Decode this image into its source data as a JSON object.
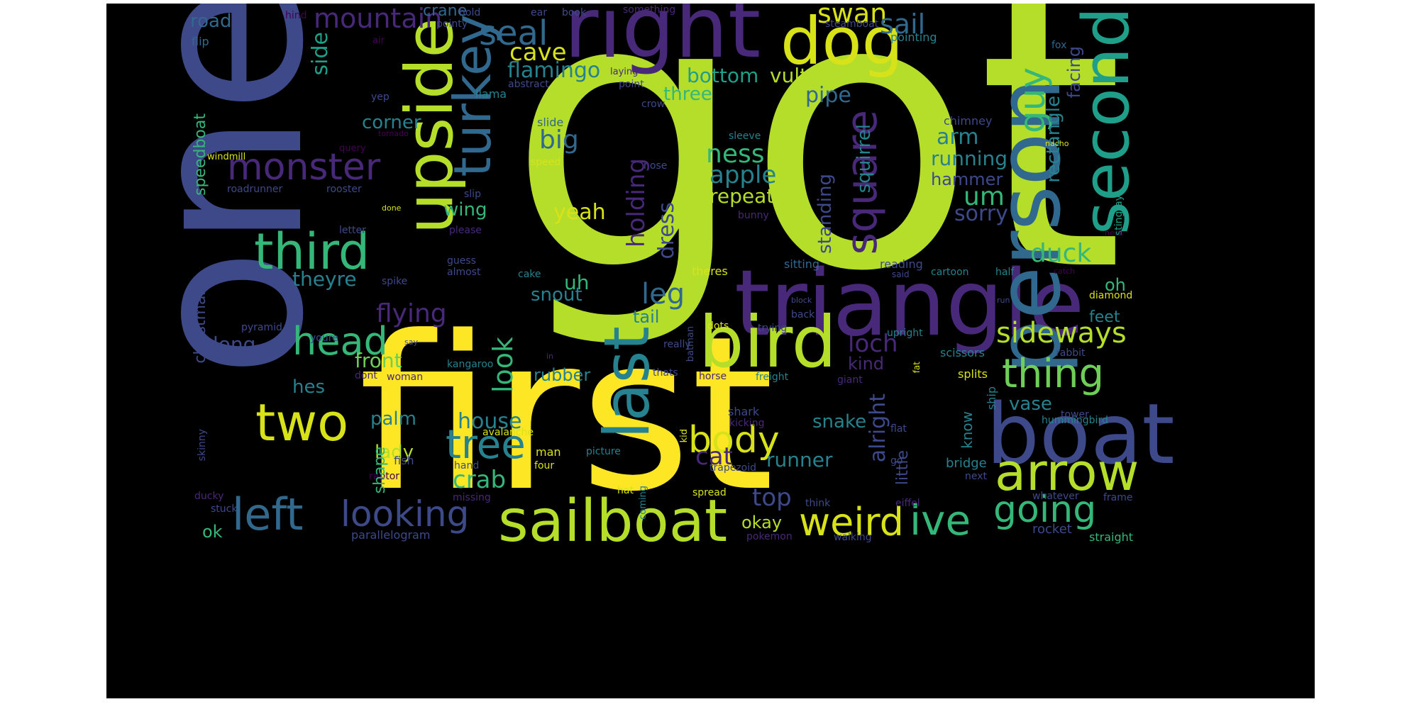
{
  "cloud": {
    "background": "#000000",
    "palette": {
      "yellow": "#fde725",
      "lime": "#b5de2b",
      "green": "#6ece58",
      "teal_green": "#35b779",
      "teal": "#1f9e89",
      "blue_teal": "#26828e",
      "blue": "#31688e",
      "indigo": "#3e4989",
      "purple": "#482878",
      "deep_purple": "#440154"
    },
    "words": [
      {
        "text": "got",
        "color": "#b5de2b"
      },
      {
        "text": "one",
        "color": "#3e4989"
      },
      {
        "text": "first",
        "color": "#fde725"
      },
      {
        "text": "triangle",
        "color": "#482878"
      },
      {
        "text": "right",
        "color": "#482878"
      },
      {
        "text": "person",
        "color": "#31688e"
      },
      {
        "text": "second",
        "color": "#1f9e89"
      },
      {
        "text": "boat",
        "color": "#3e4989"
      },
      {
        "text": "upside",
        "color": "#b5de2b"
      },
      {
        "text": "bird",
        "color": "#b5de2b"
      },
      {
        "text": "dog",
        "color": "#d8e219"
      },
      {
        "text": "last",
        "color": "#26828e"
      },
      {
        "text": "sailboat",
        "color": "#b5de2b"
      },
      {
        "text": "arrow",
        "color": "#b5de2b"
      },
      {
        "text": "two",
        "color": "#d8e219"
      },
      {
        "text": "third",
        "color": "#35b779"
      },
      {
        "text": "turkey",
        "color": "#31688e"
      },
      {
        "text": "square",
        "color": "#482878"
      },
      {
        "text": "thing",
        "color": "#6ece58"
      },
      {
        "text": "head",
        "color": "#35b779"
      },
      {
        "text": "weird",
        "color": "#d8e219"
      },
      {
        "text": "left",
        "color": "#31688e"
      },
      {
        "text": "looking",
        "color": "#3e4989"
      },
      {
        "text": "ive",
        "color": "#35b779"
      },
      {
        "text": "going",
        "color": "#35b779"
      },
      {
        "text": "tree",
        "color": "#26828e"
      },
      {
        "text": "body",
        "color": "#d8e219"
      },
      {
        "text": "monster",
        "color": "#482878"
      },
      {
        "text": "guy",
        "color": "#35b779"
      },
      {
        "text": "seal",
        "color": "#31688e"
      },
      {
        "text": "sideways",
        "color": "#b5de2b"
      },
      {
        "text": "mountain",
        "color": "#482878"
      },
      {
        "text": "swan",
        "color": "#d8e219"
      },
      {
        "text": "sail",
        "color": "#31688e"
      },
      {
        "text": "cave",
        "color": "#d8e219"
      },
      {
        "text": "flamingo",
        "color": "#26828e"
      },
      {
        "text": "bottom",
        "color": "#1f9e89"
      },
      {
        "text": "vulture",
        "color": "#b5de2b"
      },
      {
        "text": "pipe",
        "color": "#31688e"
      },
      {
        "text": "three",
        "color": "#35b779"
      },
      {
        "text": "corner",
        "color": "#26828e"
      },
      {
        "text": "side",
        "color": "#1f9e89"
      },
      {
        "text": "road",
        "color": "#31688e"
      },
      {
        "text": "crane",
        "color": "#31688e"
      },
      {
        "text": "hind",
        "color": "#440154"
      },
      {
        "text": "hold",
        "color": "#3e4989"
      },
      {
        "text": "ear",
        "color": "#3e4989"
      },
      {
        "text": "book",
        "color": "#3e4989"
      },
      {
        "text": "something",
        "color": "#482878"
      },
      {
        "text": "pointy",
        "color": "#3e4989"
      },
      {
        "text": "steamboat",
        "color": "#3e4989"
      },
      {
        "text": "pointing",
        "color": "#26828e"
      },
      {
        "text": "fox",
        "color": "#31688e"
      },
      {
        "text": "flip",
        "color": "#31688e"
      },
      {
        "text": "air",
        "color": "#440154"
      },
      {
        "text": "abstract",
        "color": "#3e4989"
      },
      {
        "text": "laying",
        "color": "#482878"
      },
      {
        "text": "point",
        "color": "#3e4989"
      },
      {
        "text": "yep",
        "color": "#3e4989"
      },
      {
        "text": "llama",
        "color": "#26828e"
      },
      {
        "text": "crow",
        "color": "#3e4989"
      },
      {
        "text": "ness",
        "color": "#35b779"
      },
      {
        "text": "apple",
        "color": "#26828e"
      },
      {
        "text": "repeat",
        "color": "#b5de2b"
      },
      {
        "text": "arm",
        "color": "#26828e"
      },
      {
        "text": "running",
        "color": "#26828e"
      },
      {
        "text": "hammer",
        "color": "#3e4989"
      },
      {
        "text": "um",
        "color": "#35b779"
      },
      {
        "text": "sorry",
        "color": "#3e4989"
      },
      {
        "text": "rectangle",
        "color": "#26828e"
      },
      {
        "text": "facing",
        "color": "#3e4989"
      },
      {
        "text": "chimney",
        "color": "#3e4989"
      },
      {
        "text": "nacho",
        "color": "#d8e219"
      },
      {
        "text": "stingray",
        "color": "#1f9e89"
      },
      {
        "text": "big",
        "color": "#31688e"
      },
      {
        "text": "slide",
        "color": "#31688e"
      },
      {
        "text": "sleeve",
        "color": "#26828e"
      },
      {
        "text": "speed",
        "color": "#d8e219"
      },
      {
        "text": "nose",
        "color": "#3e4989"
      },
      {
        "text": "squirrel",
        "color": "#26828e"
      },
      {
        "text": "standing",
        "color": "#3e4989"
      },
      {
        "text": "holding",
        "color": "#482878"
      },
      {
        "text": "dress",
        "color": "#3e4989"
      },
      {
        "text": "yeah",
        "color": "#d8e219"
      },
      {
        "text": "wing",
        "color": "#35b779"
      },
      {
        "text": "slip",
        "color": "#3e4989"
      },
      {
        "text": "bunny",
        "color": "#482878"
      },
      {
        "text": "duck",
        "color": "#35b779"
      },
      {
        "text": "neck",
        "color": "#440154"
      },
      {
        "text": "speedboat",
        "color": "#35b779"
      },
      {
        "text": "christmas",
        "color": "#3e4989"
      },
      {
        "text": "windmill",
        "color": "#d8e219"
      },
      {
        "text": "query",
        "color": "#440154"
      },
      {
        "text": "tornado",
        "color": "#440154"
      },
      {
        "text": "roadrunner",
        "color": "#3e4989"
      },
      {
        "text": "rooster",
        "color": "#3e4989"
      },
      {
        "text": "done",
        "color": "#d8e219"
      },
      {
        "text": "letter",
        "color": "#3e4989"
      },
      {
        "text": "please",
        "color": "#482878"
      },
      {
        "text": "theyre",
        "color": "#26828e"
      },
      {
        "text": "guess",
        "color": "#3e4989"
      },
      {
        "text": "almost",
        "color": "#3e4989"
      },
      {
        "text": "spike",
        "color": "#3e4989"
      },
      {
        "text": "cake",
        "color": "#26828e"
      },
      {
        "text": "uh",
        "color": "#35b779"
      },
      {
        "text": "snout",
        "color": "#26828e"
      },
      {
        "text": "flying",
        "color": "#482878"
      },
      {
        "text": "leg",
        "color": "#31688e"
      },
      {
        "text": "tail",
        "color": "#26828e"
      },
      {
        "text": "theres",
        "color": "#d8e219"
      },
      {
        "text": "sitting",
        "color": "#31688e"
      },
      {
        "text": "reading",
        "color": "#3e4989"
      },
      {
        "text": "said",
        "color": "#3e4989"
      },
      {
        "text": "cartoon",
        "color": "#26828e"
      },
      {
        "text": "half",
        "color": "#26828e"
      },
      {
        "text": "catch",
        "color": "#440154"
      },
      {
        "text": "oh",
        "color": "#35b779"
      },
      {
        "text": "diamond",
        "color": "#d8e219"
      },
      {
        "text": "run",
        "color": "#3e4989"
      },
      {
        "text": "block",
        "color": "#3e4989"
      },
      {
        "text": "back",
        "color": "#3e4989"
      },
      {
        "text": "loch",
        "color": "#482878"
      },
      {
        "text": "feet",
        "color": "#26828e"
      },
      {
        "text": "kind",
        "color": "#482878"
      },
      {
        "text": "long",
        "color": "#3e4989"
      },
      {
        "text": "front",
        "color": "#6ece58"
      },
      {
        "text": "pyramid",
        "color": "#3e4989"
      },
      {
        "text": "youre",
        "color": "#3e4989"
      },
      {
        "text": "say",
        "color": "#3e4989"
      },
      {
        "text": "batman",
        "color": "#3e4989"
      },
      {
        "text": "dots",
        "color": "#d8e219"
      },
      {
        "text": "trying",
        "color": "#3e4989"
      },
      {
        "text": "upright",
        "color": "#26828e"
      },
      {
        "text": "really",
        "color": "#3e4989"
      },
      {
        "text": "scissors",
        "color": "#26828e"
      },
      {
        "text": "rabbit",
        "color": "#3e4989"
      },
      {
        "text": "hes",
        "color": "#26828e"
      },
      {
        "text": "dont",
        "color": "#482878"
      },
      {
        "text": "in",
        "color": "#482878"
      },
      {
        "text": "woman",
        "color": "#482878"
      },
      {
        "text": "rubber",
        "color": "#26828e"
      },
      {
        "text": "look",
        "color": "#35b779"
      },
      {
        "text": "thats",
        "color": "#3e4989"
      },
      {
        "text": "freight",
        "color": "#26828e"
      },
      {
        "text": "kangaroo",
        "color": "#26828e"
      },
      {
        "text": "horse",
        "color": "#482878"
      },
      {
        "text": "giant",
        "color": "#482878"
      },
      {
        "text": "fat",
        "color": "#d8e219"
      },
      {
        "text": "splits",
        "color": "#d8e219"
      },
      {
        "text": "ship",
        "color": "#26828e"
      },
      {
        "text": "vase",
        "color": "#26828e"
      },
      {
        "text": "tower",
        "color": "#3e4989"
      },
      {
        "text": "palm",
        "color": "#26828e"
      },
      {
        "text": "house",
        "color": "#26828e"
      },
      {
        "text": "lady",
        "color": "#b5de2b"
      },
      {
        "text": "shark",
        "color": "#3e4989"
      },
      {
        "text": "flat",
        "color": "#3e4989"
      },
      {
        "text": "snake",
        "color": "#26828e"
      },
      {
        "text": "hummingbird",
        "color": "#26828e"
      },
      {
        "text": "kicking",
        "color": "#482878"
      },
      {
        "text": "avalanche",
        "color": "#d8e219"
      },
      {
        "text": "raptor",
        "color": "#440154"
      },
      {
        "text": "fish",
        "color": "#3e4989"
      },
      {
        "text": "man",
        "color": "#d8e219"
      },
      {
        "text": "crab",
        "color": "#35b779"
      },
      {
        "text": "cat",
        "color": "#482878"
      },
      {
        "text": "runner",
        "color": "#26828e"
      },
      {
        "text": "alright",
        "color": "#3e4989"
      },
      {
        "text": "little",
        "color": "#3e4989"
      },
      {
        "text": "know",
        "color": "#26828e"
      },
      {
        "text": "bridge",
        "color": "#26828e"
      },
      {
        "text": "next",
        "color": "#3e4989"
      },
      {
        "text": "skinny",
        "color": "#3e4989"
      },
      {
        "text": "hand",
        "color": "#3e4989"
      },
      {
        "text": "four",
        "color": "#d8e219"
      },
      {
        "text": "picture",
        "color": "#26828e"
      },
      {
        "text": "trapezoid",
        "color": "#3e4989"
      },
      {
        "text": "kid",
        "color": "#d8e219"
      },
      {
        "text": "coming",
        "color": "#26828e"
      },
      {
        "text": "go",
        "color": "#3e4989"
      },
      {
        "text": "shape",
        "color": "#35b779"
      },
      {
        "text": "top",
        "color": "#3e4989"
      },
      {
        "text": "ducky",
        "color": "#482878"
      },
      {
        "text": "missing",
        "color": "#482878"
      },
      {
        "text": "hat",
        "color": "#d8e219"
      },
      {
        "text": "spread",
        "color": "#d8e219"
      },
      {
        "text": "whatever",
        "color": "#3e4989"
      },
      {
        "text": "frame",
        "color": "#3e4989"
      },
      {
        "text": "stuck",
        "color": "#3e4989"
      },
      {
        "text": "okay",
        "color": "#b5de2b"
      },
      {
        "text": "think",
        "color": "#3e4989"
      },
      {
        "text": "eiffel",
        "color": "#482878"
      },
      {
        "text": "rocket",
        "color": "#3e4989"
      },
      {
        "text": "ok",
        "color": "#35b779"
      },
      {
        "text": "parallelogram",
        "color": "#3e4989"
      },
      {
        "text": "pokemon",
        "color": "#482878"
      },
      {
        "text": "walking",
        "color": "#3e4989"
      },
      {
        "text": "straight",
        "color": "#35b779"
      }
    ]
  }
}
